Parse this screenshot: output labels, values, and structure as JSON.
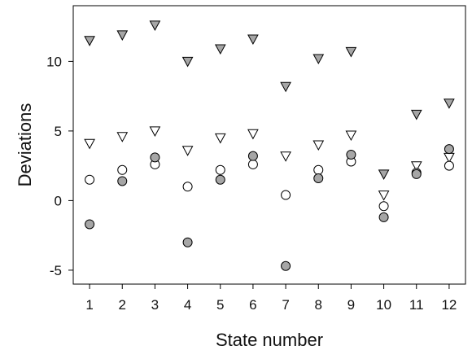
{
  "chart_data": {
    "type": "scatter",
    "title": "",
    "xlabel": "State number",
    "ylabel": "Deviations",
    "xlim": [
      0.5,
      12.5
    ],
    "ylim": [
      -6.0,
      14.0
    ],
    "xticks": [
      1,
      2,
      3,
      4,
      5,
      6,
      7,
      8,
      9,
      10,
      11,
      12
    ],
    "yticks": [
      -5,
      0,
      5,
      10
    ],
    "grid": false,
    "legend": "none",
    "series": [
      {
        "marker": "triangle-down",
        "fill": "#a6a6a6",
        "x": [
          1,
          2,
          3,
          4,
          5,
          6,
          7,
          8,
          9,
          10,
          11,
          12
        ],
        "y": [
          11.5,
          11.9,
          12.6,
          10.0,
          10.9,
          11.6,
          8.2,
          10.2,
          10.7,
          1.9,
          6.2,
          7.0
        ]
      },
      {
        "marker": "triangle-down",
        "fill": "#ffffff",
        "x": [
          1,
          2,
          3,
          4,
          5,
          6,
          7,
          8,
          9,
          10,
          11,
          12
        ],
        "y": [
          4.1,
          4.6,
          5.0,
          3.6,
          4.5,
          4.8,
          3.2,
          4.0,
          4.7,
          0.4,
          2.5,
          3.1
        ]
      },
      {
        "marker": "circle",
        "fill": "#ffffff",
        "x": [
          1,
          2,
          3,
          4,
          5,
          6,
          7,
          8,
          9,
          10,
          11,
          12
        ],
        "y": [
          1.5,
          2.2,
          2.6,
          1.0,
          2.2,
          2.6,
          0.4,
          2.2,
          2.8,
          -0.4,
          2.0,
          2.5
        ]
      },
      {
        "marker": "circle",
        "fill": "#a6a6a6",
        "x": [
          1,
          2,
          3,
          4,
          5,
          6,
          7,
          8,
          9,
          10,
          11,
          12
        ],
        "y": [
          -1.7,
          1.4,
          3.1,
          -3.0,
          1.5,
          3.2,
          -4.7,
          1.6,
          3.3,
          -1.2,
          1.9,
          3.7
        ]
      }
    ]
  }
}
